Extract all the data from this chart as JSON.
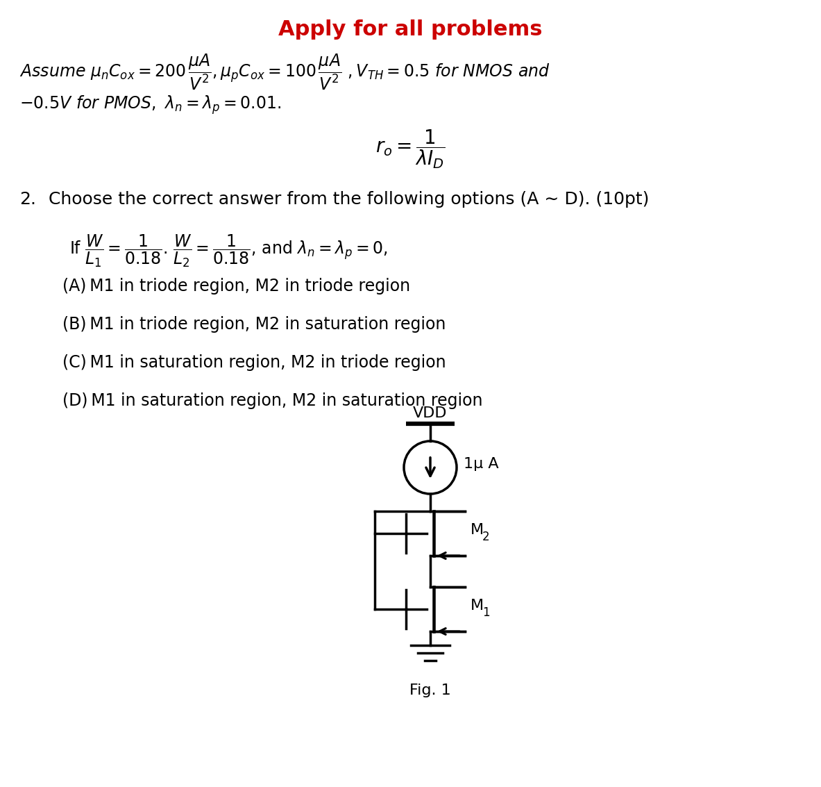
{
  "title": "Apply for all problems",
  "title_color": "#cc0000",
  "bg_color": "#ffffff",
  "line1_italic": "Assume ",
  "line1_math": "$\\mu_n C_{ox} = 200\\,\\frac{\\mu A}{V^2}$, $\\mu_p C_{ox} = 100\\,\\frac{\\mu A}{V^2}$, $V_{TH} = 0.5\\,for\\,NMOS\\,and$",
  "line2_math": "$-0.5V\\,for\\,PMOS,\\;\\lambda_n = \\lambda_p = 0.01.$",
  "ro_text": "$r_o = \\dfrac{1}{\\lambda I_D}$",
  "q_num": "2.",
  "q_text": "Choose the correct answer from the following options (A ∼ D). (10pt)",
  "if_text": "If $\\dfrac{W}{L_1} = \\dfrac{1}{0.18}$. $\\dfrac{W}{L_2} = \\dfrac{1}{0.18}$, and $\\lambda_n = \\lambda_p = 0$,",
  "optA": "(A) M1 in triode region, M2 in triode region",
  "optB": "(B) M1 in triode region, M2 in saturation region",
  "optC": "(C) M1 in saturation region, M2 in triode region",
  "optD": "(D) M1 in saturation region, M2 in saturation region",
  "fig_label": "Fig. 1",
  "vdd_label": "VDD",
  "current_label": "1μ A",
  "M2_label": "M",
  "M2_sub": "2",
  "M1_label": "M",
  "M1_sub": "1"
}
